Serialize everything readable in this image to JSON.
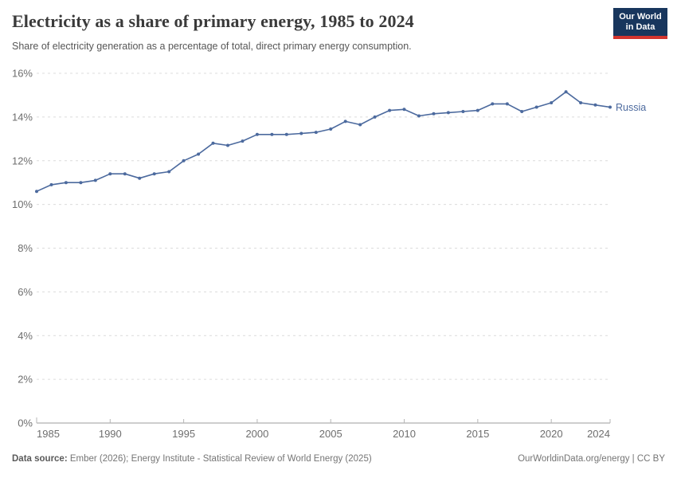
{
  "header": {
    "title": "Electricity as a share of primary energy, 1985 to 2024",
    "subtitle": "Share of electricity generation as a percentage of total, direct primary energy consumption.",
    "logo": {
      "line1": "Our World",
      "line2": "in Data"
    }
  },
  "chart_data": {
    "type": "line",
    "title": "Electricity as a share of primary energy, 1985 to 2024",
    "xlabel": "",
    "ylabel": "",
    "x": [
      1985,
      1986,
      1987,
      1988,
      1989,
      1990,
      1991,
      1992,
      1993,
      1994,
      1995,
      1996,
      1997,
      1998,
      1999,
      2000,
      2001,
      2002,
      2003,
      2004,
      2005,
      2006,
      2007,
      2008,
      2009,
      2010,
      2011,
      2012,
      2013,
      2014,
      2015,
      2016,
      2017,
      2018,
      2019,
      2020,
      2021,
      2022,
      2023,
      2024
    ],
    "series": [
      {
        "name": "Russia",
        "color": "#4c6a9e",
        "values": [
          10.6,
          10.9,
          11.0,
          11.0,
          11.1,
          11.4,
          11.4,
          11.2,
          11.4,
          11.5,
          12.0,
          12.3,
          12.8,
          12.7,
          12.9,
          13.2,
          13.2,
          13.2,
          13.25,
          13.3,
          13.45,
          13.8,
          13.65,
          14.0,
          14.3,
          14.35,
          14.05,
          14.15,
          14.2,
          14.25,
          14.3,
          14.6,
          14.6,
          14.25,
          14.45,
          14.65,
          15.15,
          14.65,
          14.55,
          14.45
        ]
      }
    ],
    "xlim": [
      1985,
      2024
    ],
    "ylim": [
      0,
      16
    ],
    "x_ticks": [
      1985,
      1990,
      1995,
      2000,
      2005,
      2010,
      2015,
      2020,
      2024
    ],
    "y_ticks": [
      0,
      2,
      4,
      6,
      8,
      10,
      12,
      14,
      16
    ],
    "y_tick_suffix": "%",
    "grid": "horizontal-dashed",
    "legend_position": "end-of-line"
  },
  "colors": {
    "accent": "#4c6a9e",
    "grid": "#dcdcdc",
    "axis": "#9e9e9e",
    "tick": "#b5b5b5",
    "tick_label": "#6e6e6e",
    "logo_bg": "#18365d",
    "logo_red": "#d2342e"
  },
  "footer": {
    "source_label": "Data source:",
    "source_text": " Ember (2026); Energy Institute - Statistical Review of World Energy (2025)",
    "rights": "OurWorldinData.org/energy | CC BY"
  }
}
